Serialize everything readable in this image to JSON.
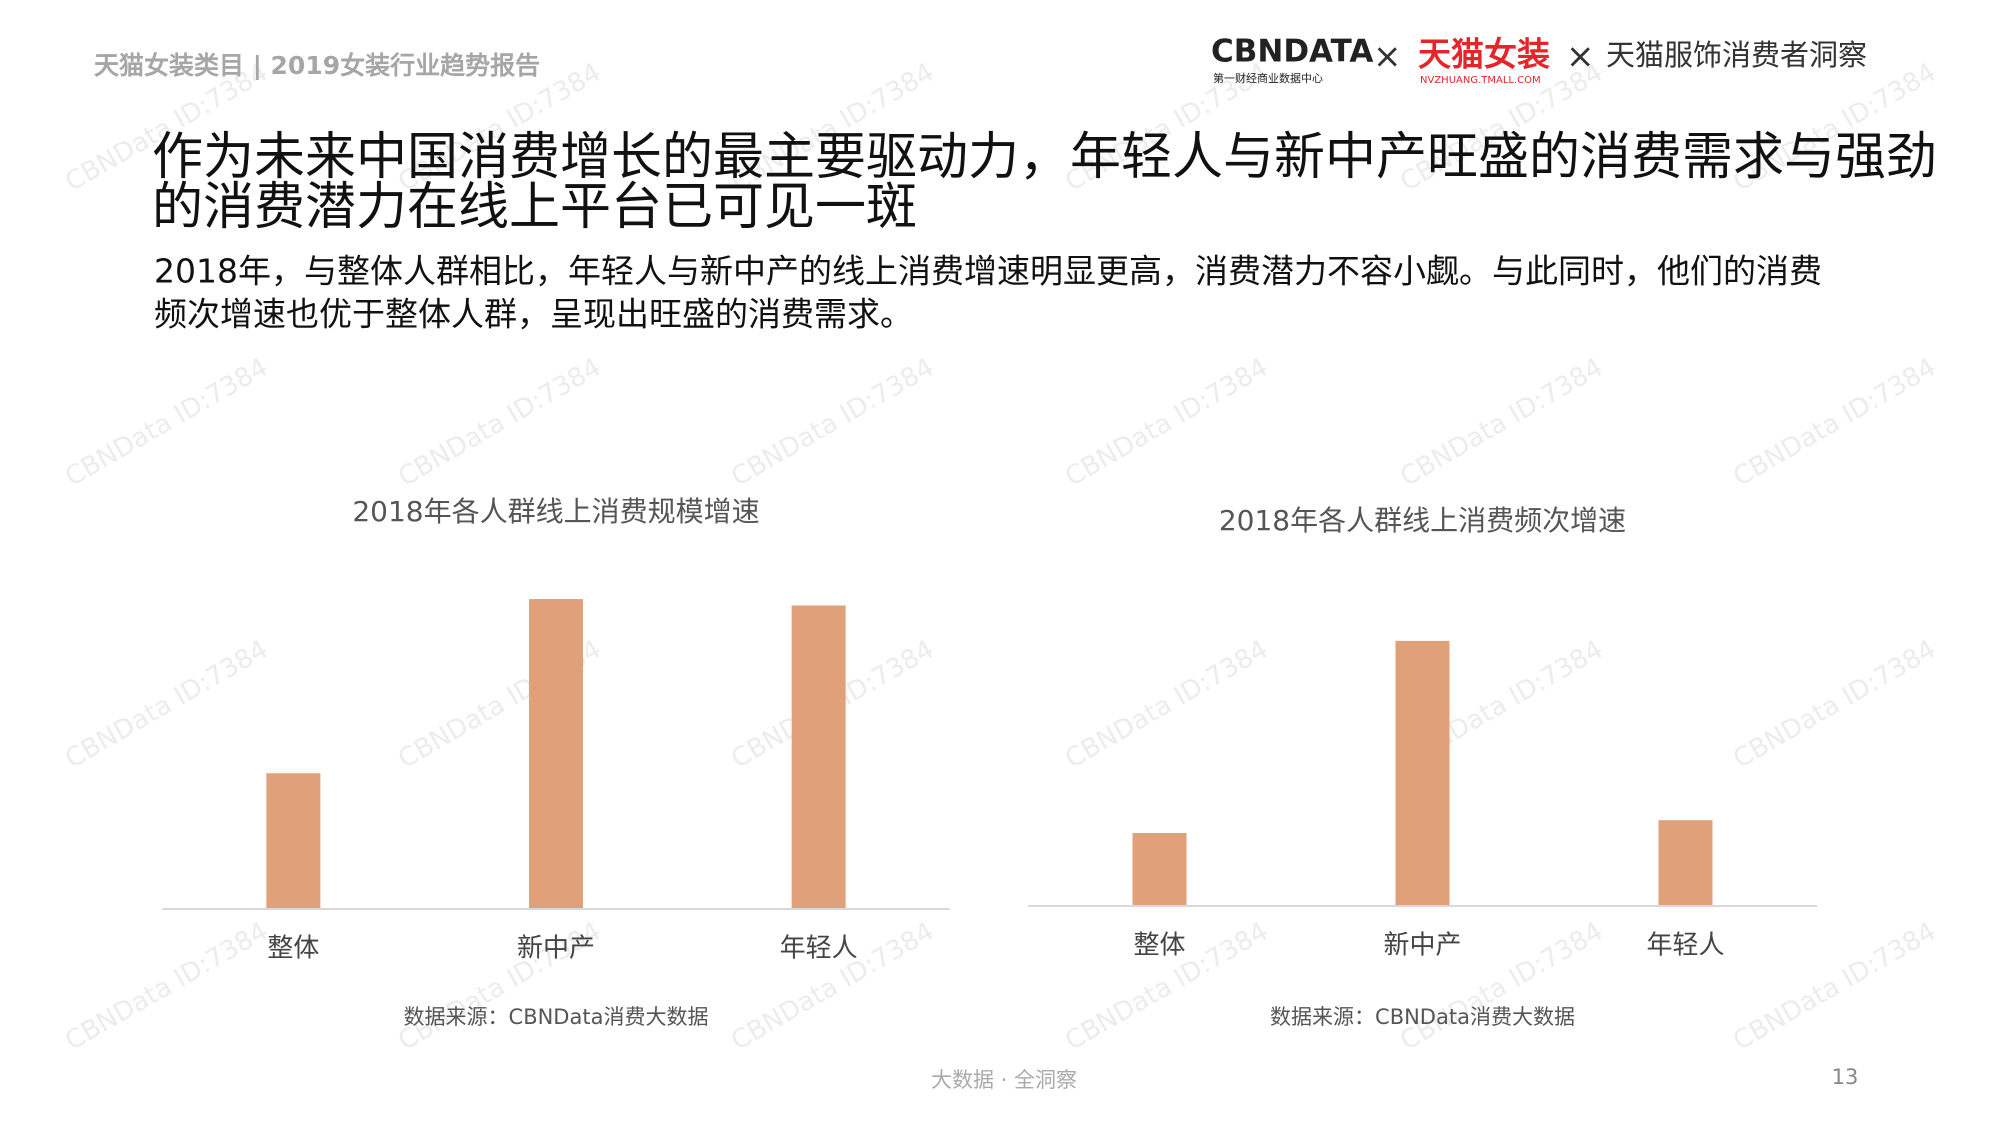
{
  "header": {
    "section": "天猫女装类目 | 2019女装行业趋势报告",
    "logo_cbn": "CBNDATA",
    "logo_cbn_sub": "第一财经商业数据中心",
    "times": "×",
    "logo_tmall": "天猫女装",
    "logo_tmall_sub": "NVZHUANG.TMALL.COM",
    "partner": "天猫服饰消费者洞察"
  },
  "title_lines": [
    "作为未来中国消费增长的最主要驱动力，年轻人与新中产旺盛的消费需求与强劲",
    "的消费潜力在线上平台已可见一斑"
  ],
  "subtitle_lines": [
    "2018年，与整体人群相比，年轻人与新中产的线上消费增速明显更高，消费潜力不容小觑。与此同时，他们的消费",
    "频次增速也优于整体人群，呈现出旺盛的消费需求。"
  ],
  "chart_data": [
    {
      "type": "bar",
      "title": "2018年各人群线上消费规模增速",
      "categories": [
        "整体",
        "新中产",
        "年轻人"
      ],
      "values": [
        106,
        242,
        237
      ],
      "color": "#dfa07a",
      "ylim": [
        0,
        260
      ],
      "source": "数据来源：CBNData消费大数据"
    },
    {
      "type": "bar",
      "title": "2018年各人群线上消费频次增速",
      "categories": [
        "整体",
        "新中产",
        "年轻人"
      ],
      "values": [
        57,
        207,
        67
      ],
      "color": "#dfa07a",
      "ylim": [
        0,
        260
      ],
      "source": "数据来源：CBNData消费大数据"
    }
  ],
  "footer": {
    "slogan": "大数据 · 全洞察",
    "page": "13"
  },
  "watermark": "CBNData ID:7384"
}
